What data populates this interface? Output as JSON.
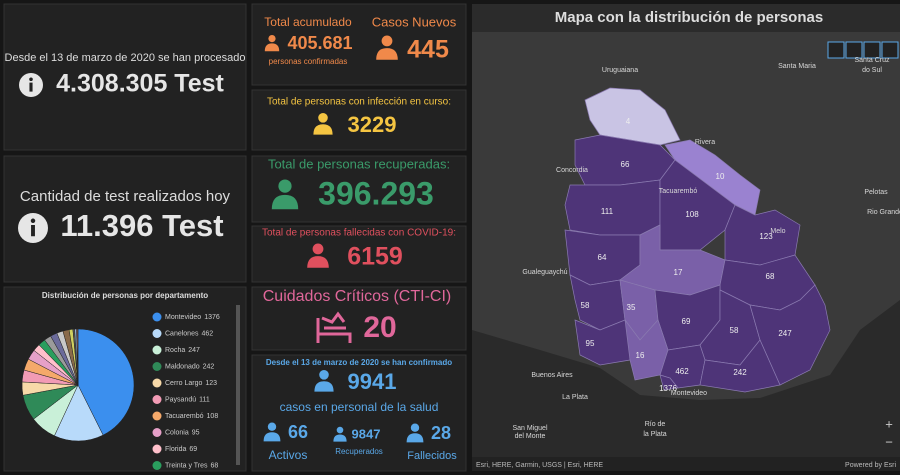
{
  "tests_total": {
    "caption": "Desde el 13 de marzo de 2020 se han procesado",
    "value": "4.308.305 Test"
  },
  "tests_today": {
    "caption": "Cantidad de test realizados hoy",
    "value": "11.396 Test"
  },
  "confirmed": {
    "title": "Total acumulado",
    "value": "405.681",
    "caption": "personas confirmadas"
  },
  "new_cases": {
    "title": "Casos Nuevos",
    "value": "445"
  },
  "active": {
    "title": "Total de personas con infección en curso:",
    "value": "3229"
  },
  "recovered": {
    "title": "Total de personas recuperadas:",
    "value": "396.293"
  },
  "deaths": {
    "title": "Total de personas fallecidas con COVID-19:",
    "value": "6159"
  },
  "critical": {
    "title": "Cuidados Críticos (CTI-CI)",
    "value": "20"
  },
  "health_staff": {
    "caption": "Desde el 13 de marzo de 2020 se han confirmado",
    "value": "9941",
    "subtitle": "casos en personal de la salud",
    "active": {
      "value": "66",
      "label": "Activos"
    },
    "recovered": {
      "value": "9847",
      "label": "Recuperados"
    },
    "deaths": {
      "value": "28",
      "label": "Fallecidos"
    }
  },
  "chart_data": {
    "type": "pie",
    "title": "Distribución de personas por departamento",
    "categories": [
      "Montevideo",
      "Canelones",
      "Rocha",
      "Maldonado",
      "Cerro Largo",
      "Paysandú",
      "Tacuarembó",
      "Colonia",
      "Florida",
      "Treinta y Tres",
      null,
      null,
      null,
      null,
      null,
      null,
      null,
      null,
      null
    ],
    "values": [
      1376,
      462,
      247,
      242,
      123,
      111,
      108,
      95,
      69,
      68,
      66,
      64,
      58,
      58,
      35,
      17,
      16,
      10,
      4
    ],
    "colors": [
      "#3b8fee",
      "#b8dafa",
      "#c9f0d8",
      "#2f8a58",
      "#f7d9a8",
      "#f29bb5",
      "#f5a96a",
      "#e6a0c8",
      "#ffc0cb",
      "#2a9e5e",
      "#9b9b9b",
      "#6b6b9b",
      "#c8c8c8",
      "#8a6a4a",
      "#d0d060",
      "#5a5a5a",
      "#a0c0e0",
      "#e08080",
      "#80c0a0"
    ]
  },
  "map": {
    "title": "Mapa con la distribución de personas",
    "regions": [
      {
        "value": 4,
        "color": "#c9c4e4"
      },
      {
        "value": 10,
        "color": "#9a82d0"
      },
      {
        "value": 66,
        "color": "#4e3478"
      },
      {
        "value": 111,
        "color": "#4e3478"
      },
      {
        "value": 108,
        "color": "#4e3478"
      },
      {
        "value": 123,
        "color": "#4e3478"
      },
      {
        "value": 64,
        "color": "#4e3478"
      },
      {
        "value": 17,
        "color": "#7a60a8"
      },
      {
        "value": 68,
        "color": "#4e3478"
      },
      {
        "value": 58,
        "color": "#4e3478"
      },
      {
        "value": 35,
        "color": "#7a60a8"
      },
      {
        "value": 69,
        "color": "#4e3478"
      },
      {
        "value": 58,
        "color": "#4e3478"
      },
      {
        "value": 247,
        "color": "#4e3478"
      },
      {
        "value": 95,
        "color": "#4e3478"
      },
      {
        "value": 16,
        "color": "#7a60a8"
      },
      {
        "value": 462,
        "color": "#4e3478"
      },
      {
        "value": 242,
        "color": "#4e3478"
      },
      {
        "value": 1376,
        "color": "#4e3478"
      }
    ],
    "places": [
      "Uruguaiana",
      "Santa Maria",
      "Santa Cruz",
      "do Sul",
      "Concordia",
      "Pelotas",
      "Rio Grande",
      "Gualeguaychú",
      "Buenos Aires",
      "La Plata",
      "Montevideo",
      "Melo",
      "Rivera",
      "Tacuarembó",
      "San Miguel",
      "del Monte",
      "Río de",
      "la Plata"
    ],
    "attribution": "Esri, HERE, Garmin, USGS | Esri, HERE",
    "powered": "Powered by Esri"
  }
}
